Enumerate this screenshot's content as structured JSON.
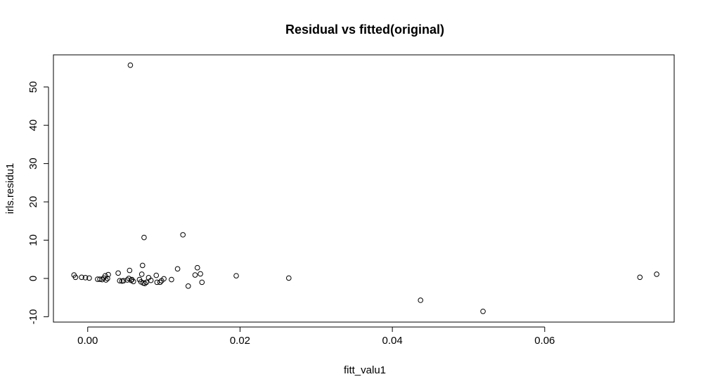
{
  "chart_data": {
    "type": "scatter",
    "title": "Residual vs fitted(original)",
    "xlabel": "fitt_valu1",
    "ylabel": "irls.residu1",
    "xlim": [
      -0.0045,
      0.077
    ],
    "ylim": [
      -11.4,
      58.4
    ],
    "xticks": [
      0.0,
      0.02,
      0.04,
      0.06
    ],
    "xtick_labels": [
      "0.00",
      "0.02",
      "0.04",
      "0.06"
    ],
    "yticks": [
      -10,
      0,
      10,
      20,
      30,
      40,
      50
    ],
    "ytick_labels": [
      "-10",
      "0",
      "10",
      "20",
      "30",
      "40",
      "50"
    ],
    "grid": false,
    "marker": "open-circle",
    "points": [
      {
        "x": -0.0018,
        "y": 0.9
      },
      {
        "x": -0.0016,
        "y": 0.3
      },
      {
        "x": -0.0008,
        "y": 0.3
      },
      {
        "x": -0.0003,
        "y": 0.2
      },
      {
        "x": 0.0002,
        "y": 0.1
      },
      {
        "x": 0.0013,
        "y": -0.2
      },
      {
        "x": 0.0016,
        "y": -0.2
      },
      {
        "x": 0.0019,
        "y": -0.3
      },
      {
        "x": 0.0021,
        "y": 0.1
      },
      {
        "x": 0.0023,
        "y": 0.7
      },
      {
        "x": 0.0024,
        "y": -0.4
      },
      {
        "x": 0.0026,
        "y": 0.0
      },
      {
        "x": 0.0027,
        "y": 1.0
      },
      {
        "x": 0.004,
        "y": 1.4
      },
      {
        "x": 0.0042,
        "y": -0.6
      },
      {
        "x": 0.0045,
        "y": -0.7
      },
      {
        "x": 0.0047,
        "y": -0.6
      },
      {
        "x": 0.0052,
        "y": -0.4
      },
      {
        "x": 0.0054,
        "y": 0.0
      },
      {
        "x": 0.0055,
        "y": 2.1
      },
      {
        "x": 0.0056,
        "y": 55.7
      },
      {
        "x": 0.0057,
        "y": -0.5
      },
      {
        "x": 0.0058,
        "y": -0.3
      },
      {
        "x": 0.006,
        "y": -0.8
      },
      {
        "x": 0.0068,
        "y": -0.3
      },
      {
        "x": 0.007,
        "y": -0.9
      },
      {
        "x": 0.0071,
        "y": 1.1
      },
      {
        "x": 0.0072,
        "y": 3.4
      },
      {
        "x": 0.0073,
        "y": -1.2
      },
      {
        "x": 0.0074,
        "y": 10.7
      },
      {
        "x": 0.0075,
        "y": -1.3
      },
      {
        "x": 0.0077,
        "y": -1.0
      },
      {
        "x": 0.008,
        "y": 0.2
      },
      {
        "x": 0.0083,
        "y": -0.5
      },
      {
        "x": 0.009,
        "y": 0.8
      },
      {
        "x": 0.0091,
        "y": -1.0
      },
      {
        "x": 0.0095,
        "y": -1.0
      },
      {
        "x": 0.0097,
        "y": -0.6
      },
      {
        "x": 0.01,
        "y": -0.1
      },
      {
        "x": 0.011,
        "y": -0.3
      },
      {
        "x": 0.0118,
        "y": 2.5
      },
      {
        "x": 0.0125,
        "y": 11.4
      },
      {
        "x": 0.0132,
        "y": -2.0
      },
      {
        "x": 0.0141,
        "y": 0.9
      },
      {
        "x": 0.0144,
        "y": 2.8
      },
      {
        "x": 0.0148,
        "y": 1.2
      },
      {
        "x": 0.015,
        "y": -1.0
      },
      {
        "x": 0.0195,
        "y": 0.7
      },
      {
        "x": 0.0264,
        "y": 0.1
      },
      {
        "x": 0.0437,
        "y": -5.7
      },
      {
        "x": 0.0519,
        "y": -8.6
      },
      {
        "x": 0.0725,
        "y": 0.3
      },
      {
        "x": 0.0747,
        "y": 1.1
      }
    ]
  }
}
